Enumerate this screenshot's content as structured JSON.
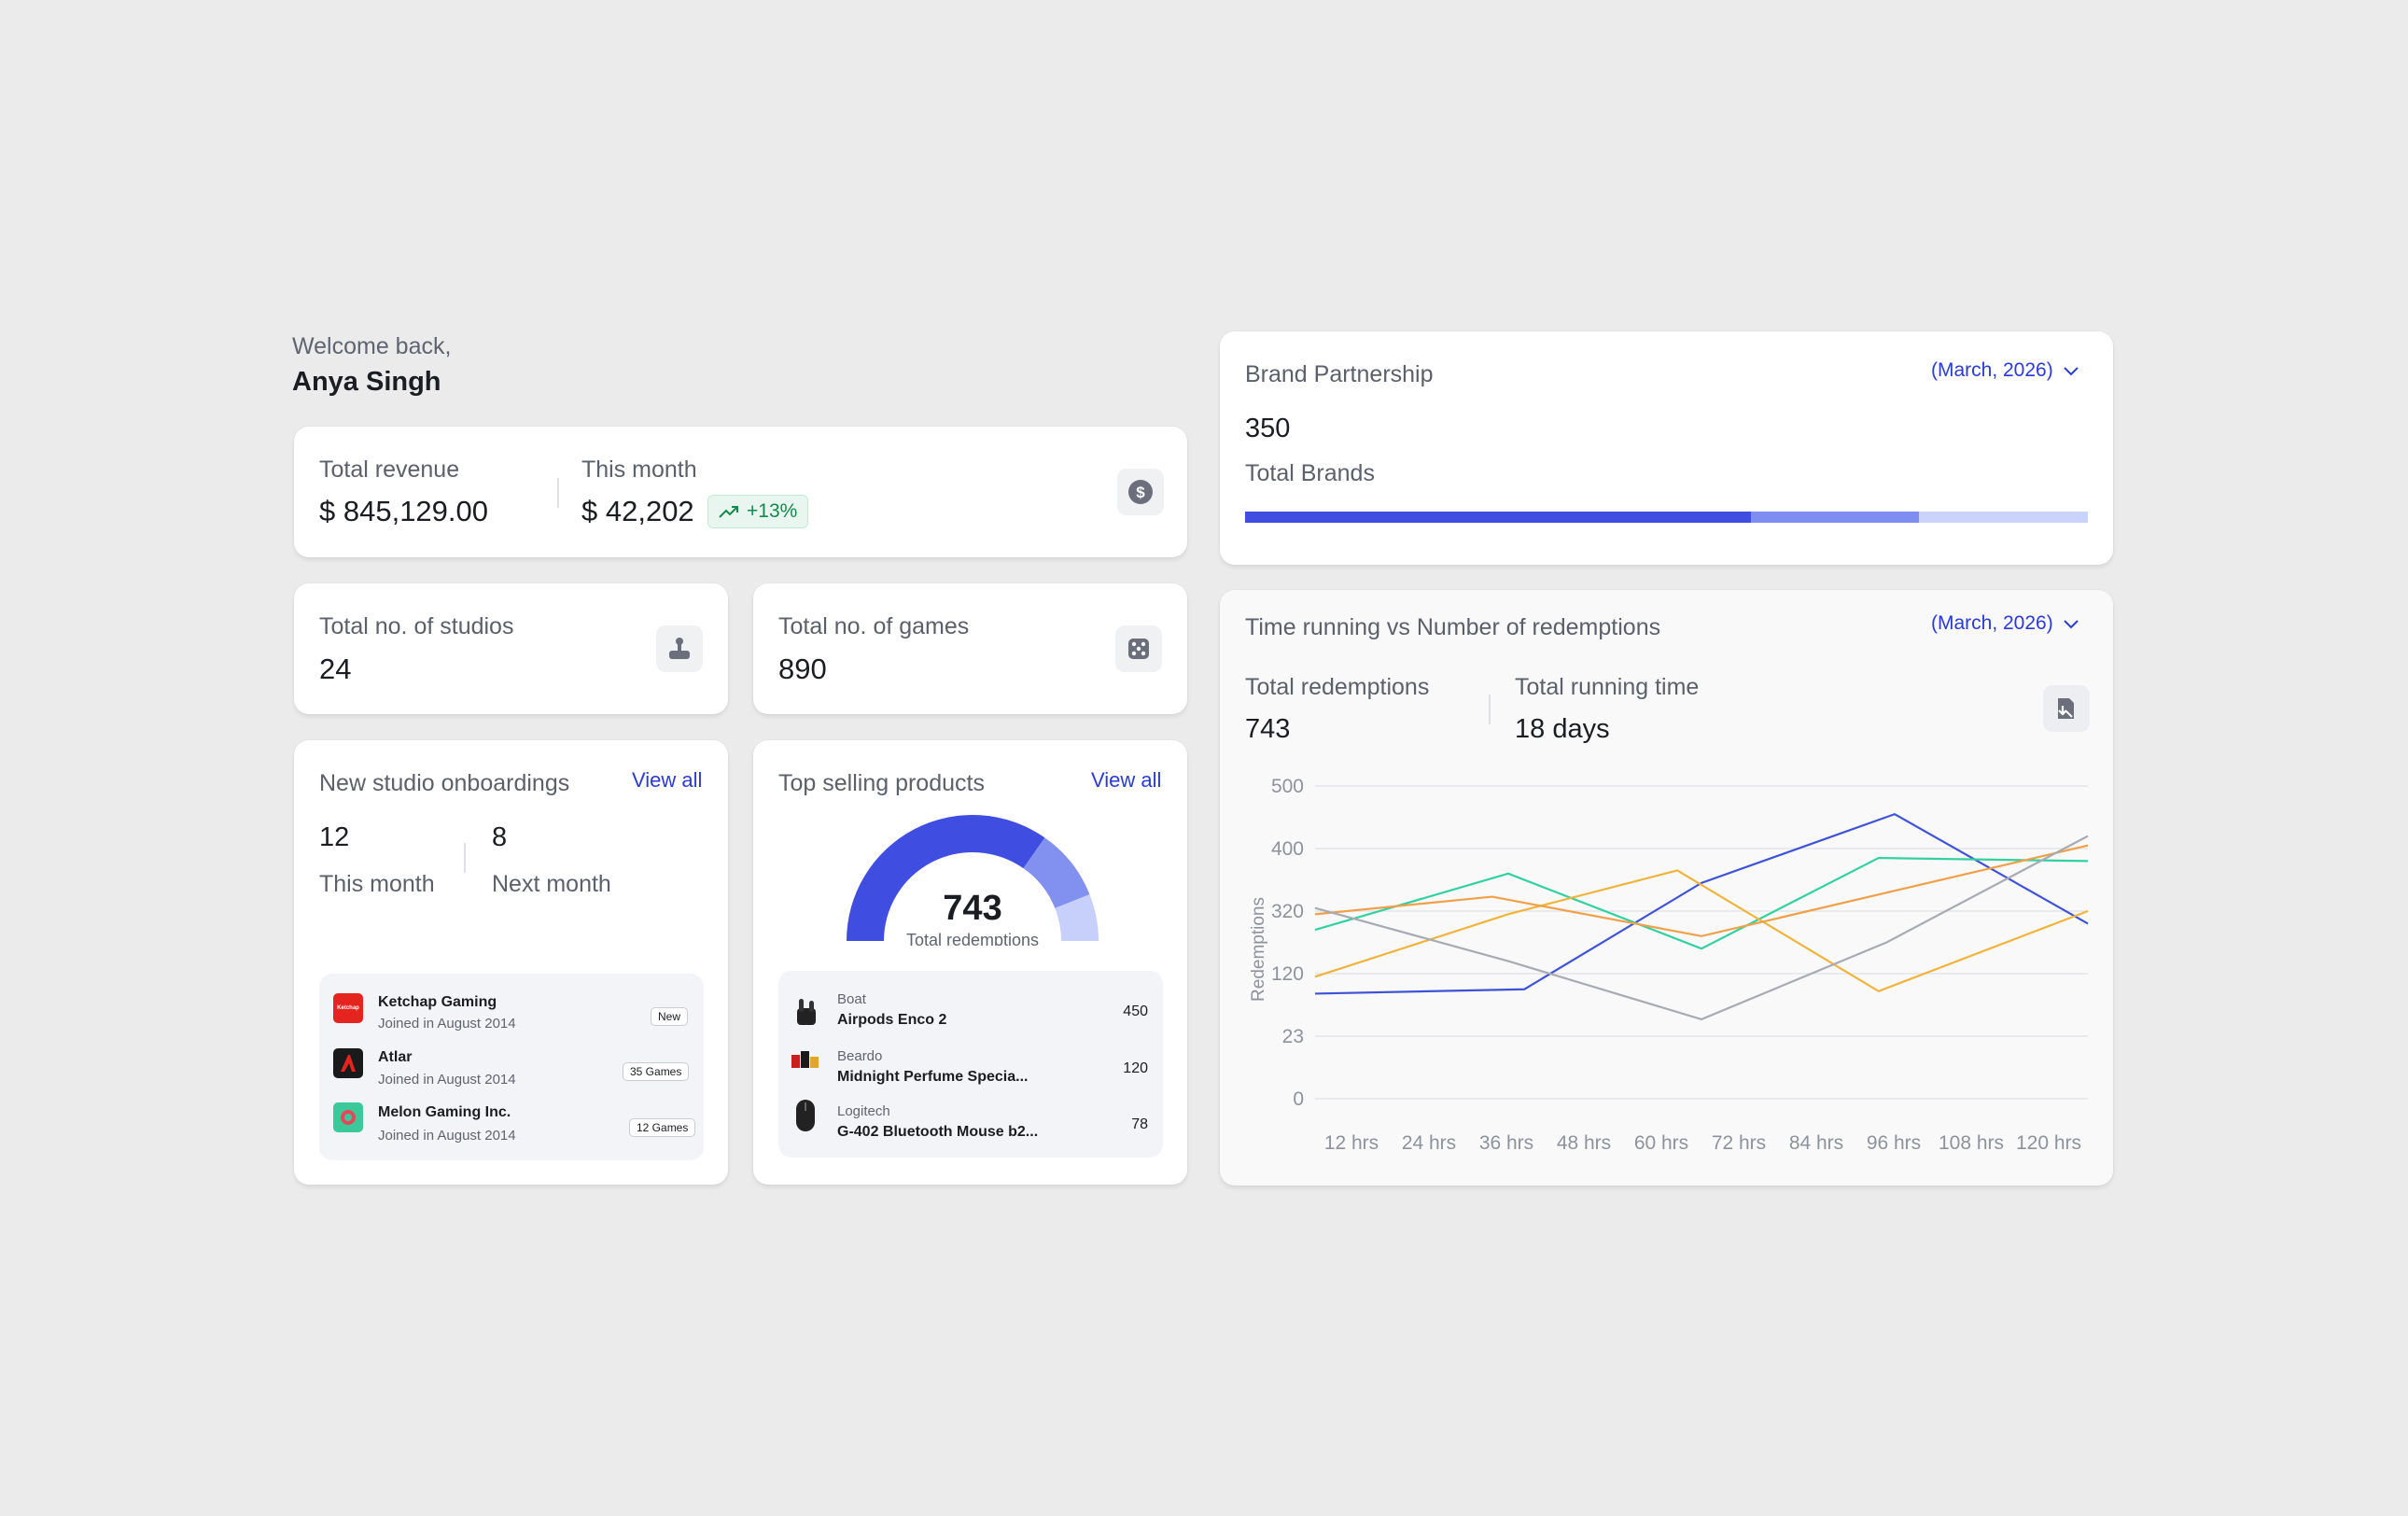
{
  "welcome": {
    "greeting": "Welcome back,",
    "name": "Anya Singh"
  },
  "revenue": {
    "total_label": "Total revenue",
    "total_value": "$ 845,129.00",
    "month_label": "This month",
    "month_value": "$ 42,202",
    "trend": "+13%",
    "icon": "dollar-icon"
  },
  "studios": {
    "label": "Total no. of studios",
    "value": "24",
    "icon": "joystick-icon"
  },
  "games": {
    "label": "Total no. of games",
    "value": "890",
    "icon": "dice-icon"
  },
  "onboardings": {
    "title": "New studio onboardings",
    "view_all": "View all",
    "this_month_value": "12",
    "this_month_label": "This month",
    "next_month_value": "8",
    "next_month_label": "Next month",
    "items": [
      {
        "name": "Ketchap Gaming",
        "sub": "Joined in August 2014",
        "badge": "New",
        "logo_color": "#e52420"
      },
      {
        "name": "Atlar",
        "sub": "Joined in August 2014",
        "badge": "35 Games",
        "logo_color": "#1a1a1a"
      },
      {
        "name": "Melon Gaming Inc.",
        "sub": "Joined in August 2014",
        "badge": "12 Games",
        "logo_color": "#3cc99a"
      }
    ]
  },
  "top_products": {
    "title": "Top selling products",
    "view_all": "View all",
    "gauge_value": "743",
    "gauge_label": "Total redemptions",
    "gauge_segments": [
      450,
      120,
      78
    ],
    "gauge_colors": [
      "#3f4de0",
      "#8291f0",
      "#c7d0fa"
    ],
    "items": [
      {
        "brand": "Boat",
        "name": "Airpods Enco 2",
        "value": "450"
      },
      {
        "brand": "Beardo",
        "name": "Midnight Perfume Specia...",
        "value": "120"
      },
      {
        "brand": "Logitech",
        "name": "G-402 Bluetooth Mouse b2...",
        "value": "78"
      }
    ]
  },
  "brand": {
    "title": "Brand Partnership",
    "date": "(March, 2026)",
    "value": "350",
    "label": "Total Brands",
    "bar_segments": [
      0.6,
      0.2,
      0.2
    ],
    "bar_colors": [
      "#3f4de0",
      "#7d8df0",
      "#c9d3fb"
    ]
  },
  "redemption": {
    "title": "Time running vs Number of redemptions",
    "date": "(March, 2026)",
    "total_label": "Total redemptions",
    "total_value": "743",
    "time_label": "Total running time",
    "time_value": "18 days",
    "icon": "download-icon"
  },
  "chart_data": {
    "type": "line",
    "title": "",
    "xlabel": "",
    "ylabel": "Redemptions",
    "x": [
      "12 hrs",
      "24 hrs",
      "36 hrs",
      "48 hrs",
      "60 hrs",
      "72 hrs",
      "84 hrs",
      "96 hrs",
      "108 hrs",
      "120 hrs"
    ],
    "y_ticks": [
      "500",
      "400",
      "320",
      "120",
      "23",
      "0"
    ],
    "grid": true,
    "series": [
      {
        "color": "#3f53d6",
        "points": [
          [
            0,
            1.68
          ],
          [
            2.6,
            1.75
          ],
          [
            4.8,
            3.45
          ],
          [
            7.2,
            4.55
          ],
          [
            9.6,
            2.8
          ]
        ]
      },
      {
        "color": "#33d1a0",
        "points": [
          [
            0,
            2.7
          ],
          [
            2.4,
            3.6
          ],
          [
            4.8,
            2.4
          ],
          [
            7.0,
            3.85
          ],
          [
            9.6,
            3.8
          ]
        ]
      },
      {
        "color": "#f0b43c",
        "points": [
          [
            0,
            1.95
          ],
          [
            2.4,
            2.95
          ],
          [
            4.5,
            3.65
          ],
          [
            7.0,
            1.72
          ],
          [
            9.6,
            3.0
          ]
        ]
      },
      {
        "color": "#f0a04a",
        "points": [
          [
            0,
            2.95
          ],
          [
            2.2,
            3.23
          ],
          [
            4.8,
            2.6
          ],
          [
            9.6,
            4.05
          ]
        ]
      },
      {
        "color": "#a9abb2",
        "points": [
          [
            0,
            3.05
          ],
          [
            2.4,
            2.2
          ],
          [
            4.8,
            1.27
          ],
          [
            7.1,
            2.5
          ],
          [
            9.6,
            4.2
          ]
        ]
      }
    ],
    "ylim": [
      0,
      5
    ],
    "xlim": [
      0,
      9.6
    ]
  }
}
